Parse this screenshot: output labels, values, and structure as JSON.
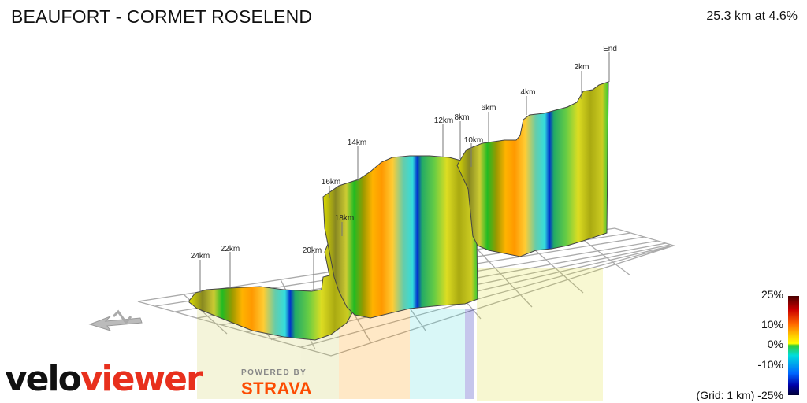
{
  "header": {
    "title": "BEAUFORT - CORMET ROSELEND",
    "summary": "25.3 km at 4.6%"
  },
  "markers": [
    {
      "label": "End"
    },
    {
      "label": "2km"
    },
    {
      "label": "4km"
    },
    {
      "label": "6km"
    },
    {
      "label": "8km"
    },
    {
      "label": "10km"
    },
    {
      "label": "12km"
    },
    {
      "label": "14km"
    },
    {
      "label": "16km"
    },
    {
      "label": "18km"
    },
    {
      "label": "20km"
    },
    {
      "label": "22km"
    },
    {
      "label": "24km"
    }
  ],
  "legend": {
    "top": "25%",
    "l10": "10%",
    "zero": "0%",
    "m10": "-10%",
    "bottom": "(Grid: 1 km) -25%"
  },
  "branding": {
    "logo_part1": "velo",
    "logo_part2": "viewer",
    "powered_by": "POWERED BY",
    "strava": "STRAVA"
  },
  "colors": {
    "brand_red": "#e8301d",
    "strava_orange": "#fc4c02",
    "grid": "#aaaaaa"
  }
}
